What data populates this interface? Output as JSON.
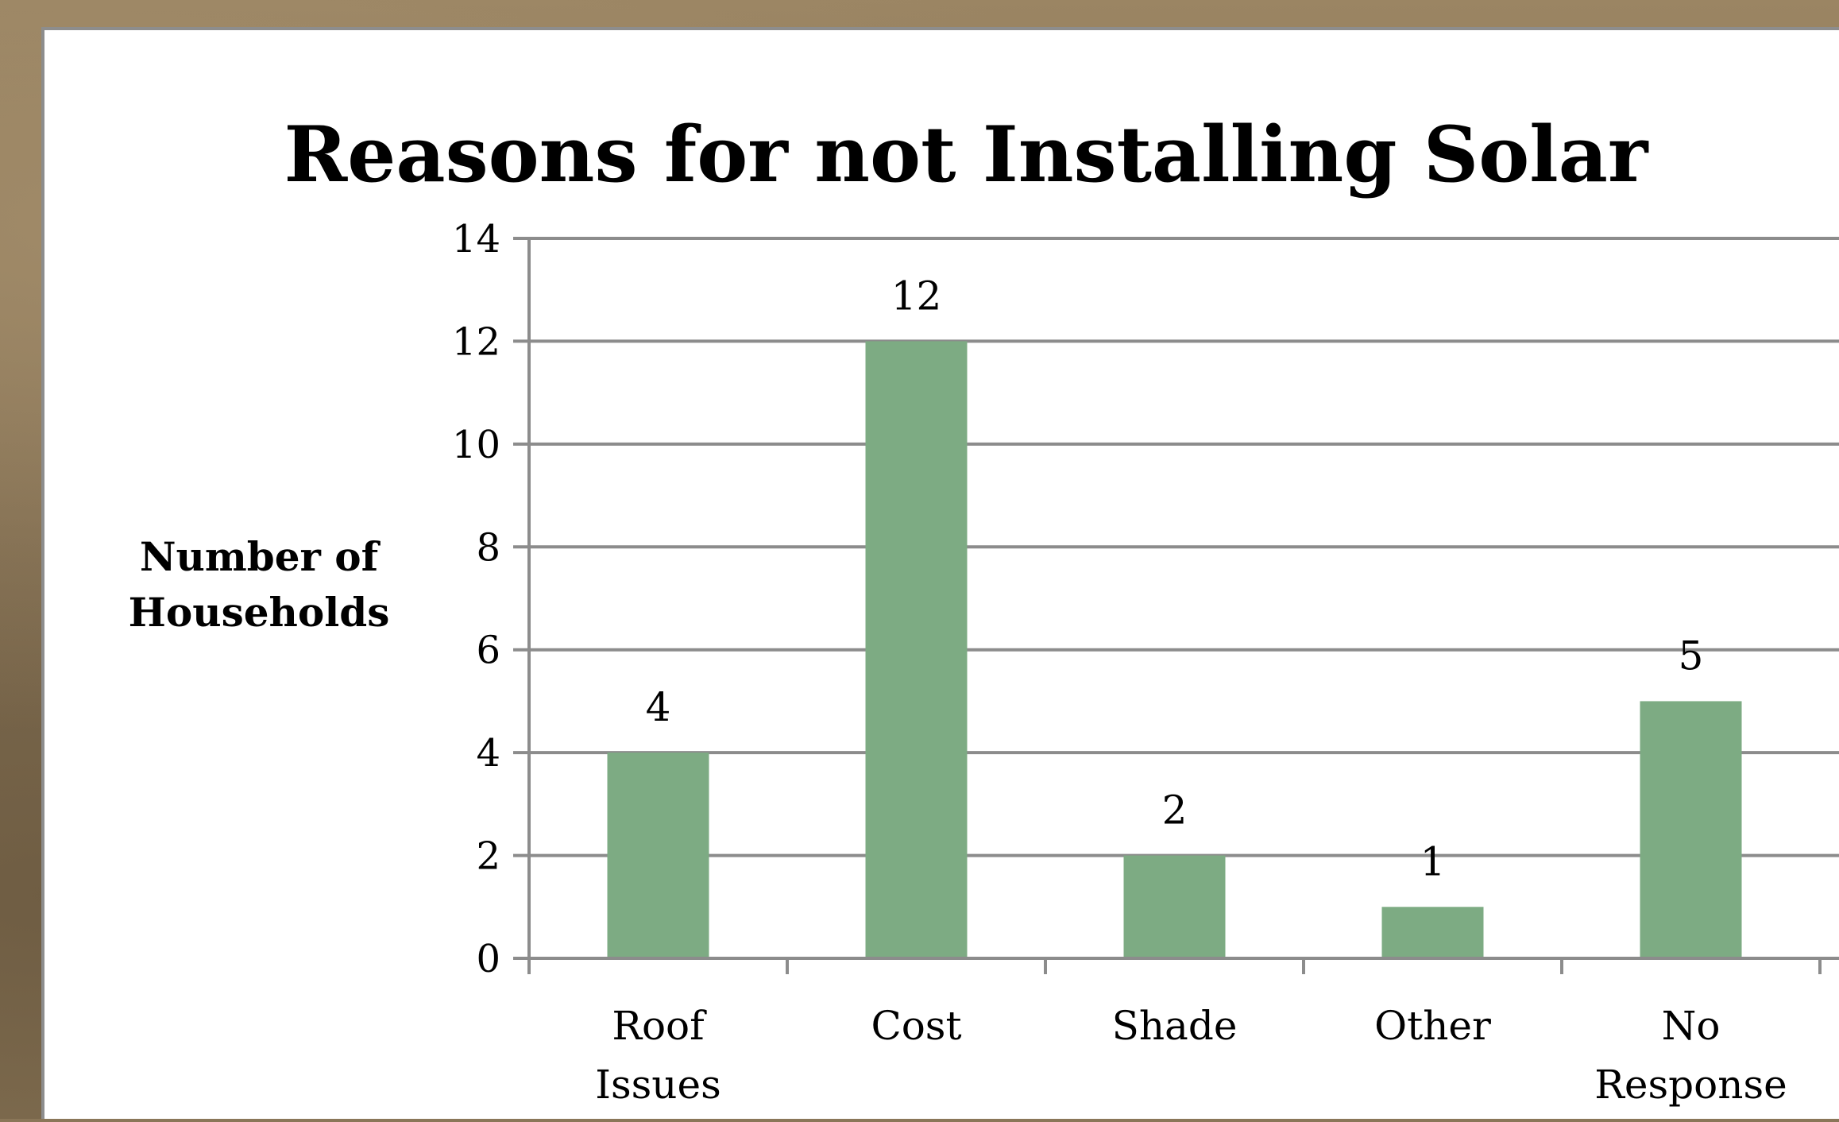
{
  "chart_data": {
    "type": "bar",
    "title": "Reasons for not Installing Solar",
    "ylabel": [
      "Number of",
      "Households"
    ],
    "xlabel": "",
    "categories": [
      [
        "Roof",
        "Issues"
      ],
      [
        "Cost"
      ],
      [
        "Shade"
      ],
      [
        "Other"
      ],
      [
        "No",
        "Response"
      ]
    ],
    "values": [
      4,
      12,
      2,
      1,
      5
    ],
    "data_labels": [
      "4",
      "12",
      "2",
      "1",
      "5"
    ],
    "ylim": [
      0,
      14
    ],
    "yticks": [
      0,
      2,
      4,
      6,
      8,
      10,
      12,
      14
    ],
    "grid": true,
    "legend": "none",
    "bar_color": "#7dab83",
    "grid_color": "#8c8c8c"
  }
}
